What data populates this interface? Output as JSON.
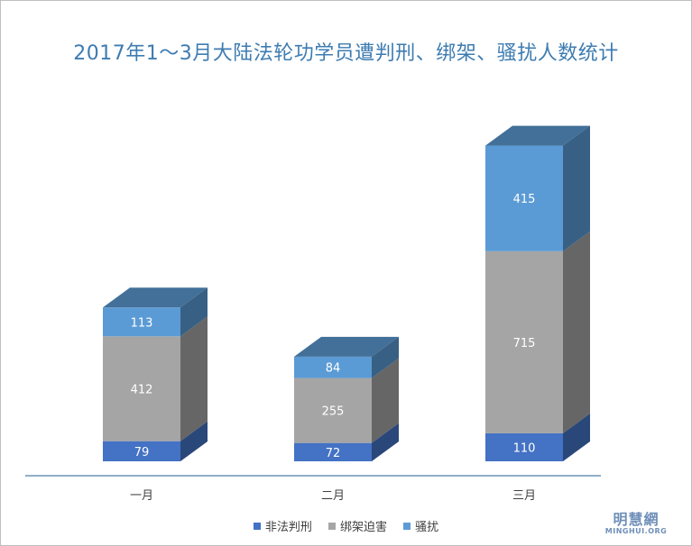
{
  "chart_data": {
    "type": "bar",
    "stacked": true,
    "title": "2017年1～3月大陆法轮功学员遭判刑、绑架、骚扰人数统计",
    "categories": [
      "一月",
      "二月",
      "三月"
    ],
    "series": [
      {
        "name": "非法判刑",
        "values": [
          79,
          72,
          110
        ],
        "color": "#4472c4"
      },
      {
        "name": "绑架迫害",
        "values": [
          412,
          255,
          715
        ],
        "color": "#a5a5a5"
      },
      {
        "name": "骚扰",
        "values": [
          113,
          84,
          415
        ],
        "color": "#5b9bd5"
      }
    ],
    "legend_position": "bottom",
    "grid": false
  },
  "watermark": {
    "cn": "明慧網",
    "en": "MINGHUI.ORG"
  }
}
